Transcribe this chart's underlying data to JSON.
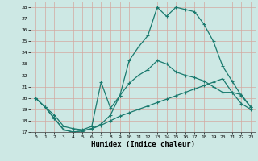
{
  "xlabel": "Humidex (Indice chaleur)",
  "ylabel": "",
  "xlim": [
    -0.5,
    23.5
  ],
  "ylim": [
    17,
    28.5
  ],
  "yticks": [
    17,
    18,
    19,
    20,
    21,
    22,
    23,
    24,
    25,
    26,
    27,
    28
  ],
  "xticks": [
    0,
    1,
    2,
    3,
    4,
    5,
    6,
    7,
    8,
    9,
    10,
    11,
    12,
    13,
    14,
    15,
    16,
    17,
    18,
    19,
    20,
    21,
    22,
    23
  ],
  "bg_color": "#cde8e4",
  "line_color": "#1a7a6e",
  "grid_color": "#b0d4cc",
  "line1_x": [
    0,
    1,
    2,
    3,
    4,
    5,
    6,
    7,
    8,
    9,
    10,
    11,
    12,
    13,
    14,
    15,
    16,
    17,
    18,
    19,
    20,
    21,
    22,
    23
  ],
  "line1_y": [
    20.0,
    19.2,
    18.2,
    17.2,
    17.0,
    17.1,
    17.3,
    17.7,
    18.5,
    20.2,
    23.3,
    24.5,
    25.5,
    28.0,
    27.2,
    28.0,
    27.8,
    27.6,
    26.5,
    25.0,
    22.8,
    21.5,
    20.2,
    19.2
  ],
  "line2_x": [
    0,
    1,
    2,
    3,
    4,
    5,
    6,
    7,
    8,
    9,
    10,
    11,
    12,
    13,
    14,
    15,
    16,
    17,
    18,
    19,
    20,
    21,
    22,
    23
  ],
  "line2_y": [
    20.0,
    19.2,
    18.5,
    17.5,
    17.3,
    17.2,
    17.5,
    21.4,
    19.1,
    20.2,
    21.3,
    22.0,
    22.5,
    23.3,
    23.0,
    22.3,
    22.0,
    21.8,
    21.5,
    21.0,
    20.5,
    20.5,
    20.3,
    19.2
  ],
  "line3_x": [
    0,
    1,
    2,
    3,
    4,
    5,
    6,
    7,
    8,
    9,
    10,
    11,
    12,
    13,
    14,
    15,
    16,
    17,
    18,
    19,
    20,
    21,
    22,
    23
  ],
  "line3_y": [
    20.0,
    19.2,
    18.2,
    17.2,
    17.0,
    17.1,
    17.3,
    17.6,
    18.0,
    18.4,
    18.7,
    19.0,
    19.3,
    19.6,
    19.9,
    20.2,
    20.5,
    20.8,
    21.1,
    21.4,
    21.7,
    20.5,
    19.5,
    19.0
  ]
}
